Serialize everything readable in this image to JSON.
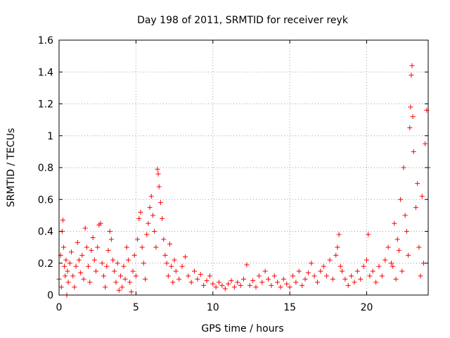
{
  "chart_data": {
    "type": "scatter",
    "title": "Day 198 of 2011, SRMTID for receiver reyk",
    "xlabel": "GPS time / hours",
    "ylabel": "SRMTID / TECUs",
    "xlim": [
      0,
      24
    ],
    "ylim": [
      0,
      1.6
    ],
    "xticks": [
      0,
      5,
      10,
      15,
      20
    ],
    "yticks": [
      0,
      0.2,
      0.4,
      0.6,
      0.8,
      1,
      1.2,
      1.4,
      1.6
    ],
    "ytick_labels": [
      "0",
      "0.2",
      "0.4",
      "0.6",
      "0.8",
      "1",
      "1.2",
      "1.4",
      "1.6"
    ],
    "grid": true,
    "marker": "+",
    "series": [
      {
        "color": "#ff0000",
        "points": [
          [
            0.0,
            0.1
          ],
          [
            0.1,
            0.25
          ],
          [
            0.15,
            0.05
          ],
          [
            0.2,
            0.4
          ],
          [
            0.25,
            0.47
          ],
          [
            0.3,
            0.3
          ],
          [
            0.35,
            0.18
          ],
          [
            0.4,
            0.12
          ],
          [
            0.45,
            0.22
          ],
          [
            0.5,
            0.0
          ],
          [
            0.55,
            0.15
          ],
          [
            0.6,
            0.08
          ],
          [
            0.7,
            0.2
          ],
          [
            0.8,
            0.27
          ],
          [
            0.9,
            0.12
          ],
          [
            1.0,
            0.05
          ],
          [
            1.1,
            0.18
          ],
          [
            1.2,
            0.33
          ],
          [
            1.3,
            0.22
          ],
          [
            1.4,
            0.14
          ],
          [
            1.5,
            0.25
          ],
          [
            1.6,
            0.1
          ],
          [
            1.7,
            0.42
          ],
          [
            1.8,
            0.3
          ],
          [
            1.9,
            0.18
          ],
          [
            2.0,
            0.08
          ],
          [
            2.1,
            0.28
          ],
          [
            2.2,
            0.36
          ],
          [
            2.3,
            0.22
          ],
          [
            2.4,
            0.15
          ],
          [
            2.5,
            0.3
          ],
          [
            2.6,
            0.44
          ],
          [
            2.7,
            0.45
          ],
          [
            2.8,
            0.2
          ],
          [
            2.9,
            0.12
          ],
          [
            3.0,
            0.05
          ],
          [
            3.1,
            0.18
          ],
          [
            3.2,
            0.28
          ],
          [
            3.3,
            0.4
          ],
          [
            3.4,
            0.35
          ],
          [
            3.5,
            0.22
          ],
          [
            3.6,
            0.15
          ],
          [
            3.7,
            0.08
          ],
          [
            3.8,
            0.2
          ],
          [
            3.9,
            0.03
          ],
          [
            4.0,
            0.12
          ],
          [
            4.1,
            0.05
          ],
          [
            4.2,
            0.18
          ],
          [
            4.3,
            0.1
          ],
          [
            4.4,
            0.3
          ],
          [
            4.5,
            0.22
          ],
          [
            4.6,
            0.08
          ],
          [
            4.7,
            0.02
          ],
          [
            4.8,
            0.15
          ],
          [
            4.9,
            0.25
          ],
          [
            5.0,
            0.12
          ],
          [
            5.1,
            0.35
          ],
          [
            5.2,
            0.48
          ],
          [
            5.3,
            0.52
          ],
          [
            5.4,
            0.3
          ],
          [
            5.5,
            0.2
          ],
          [
            5.6,
            0.1
          ],
          [
            5.7,
            0.38
          ],
          [
            5.8,
            0.45
          ],
          [
            5.9,
            0.55
          ],
          [
            6.0,
            0.62
          ],
          [
            6.1,
            0.5
          ],
          [
            6.2,
            0.4
          ],
          [
            6.3,
            0.3
          ],
          [
            6.4,
            0.79
          ],
          [
            6.45,
            0.76
          ],
          [
            6.5,
            0.68
          ],
          [
            6.6,
            0.58
          ],
          [
            6.7,
            0.48
          ],
          [
            6.8,
            0.35
          ],
          [
            6.9,
            0.25
          ],
          [
            7.0,
            0.2
          ],
          [
            7.1,
            0.12
          ],
          [
            7.2,
            0.32
          ],
          [
            7.3,
            0.18
          ],
          [
            7.4,
            0.08
          ],
          [
            7.5,
            0.22
          ],
          [
            7.6,
            0.15
          ],
          [
            7.8,
            0.1
          ],
          [
            8.0,
            0.18
          ],
          [
            8.2,
            0.24
          ],
          [
            8.4,
            0.12
          ],
          [
            8.6,
            0.08
          ],
          [
            8.8,
            0.15
          ],
          [
            9.0,
            0.1
          ],
          [
            9.2,
            0.13
          ],
          [
            9.4,
            0.06
          ],
          [
            9.6,
            0.09
          ],
          [
            9.8,
            0.12
          ],
          [
            10.0,
            0.07
          ],
          [
            10.2,
            0.05
          ],
          [
            10.4,
            0.08
          ],
          [
            10.6,
            0.06
          ],
          [
            10.8,
            0.04
          ],
          [
            11.0,
            0.07
          ],
          [
            11.2,
            0.09
          ],
          [
            11.4,
            0.05
          ],
          [
            11.6,
            0.08
          ],
          [
            11.8,
            0.06
          ],
          [
            12.0,
            0.1
          ],
          [
            12.2,
            0.19
          ],
          [
            12.4,
            0.06
          ],
          [
            12.6,
            0.09
          ],
          [
            12.8,
            0.05
          ],
          [
            13.0,
            0.12
          ],
          [
            13.2,
            0.08
          ],
          [
            13.4,
            0.15
          ],
          [
            13.6,
            0.1
          ],
          [
            13.8,
            0.06
          ],
          [
            14.0,
            0.12
          ],
          [
            14.2,
            0.08
          ],
          [
            14.4,
            0.05
          ],
          [
            14.6,
            0.1
          ],
          [
            14.8,
            0.07
          ],
          [
            15.0,
            0.05
          ],
          [
            15.2,
            0.12
          ],
          [
            15.4,
            0.08
          ],
          [
            15.6,
            0.15
          ],
          [
            15.8,
            0.06
          ],
          [
            16.0,
            0.1
          ],
          [
            16.2,
            0.14
          ],
          [
            16.4,
            0.2
          ],
          [
            16.6,
            0.12
          ],
          [
            16.8,
            0.08
          ],
          [
            17.0,
            0.15
          ],
          [
            17.2,
            0.18
          ],
          [
            17.4,
            0.12
          ],
          [
            17.6,
            0.22
          ],
          [
            17.8,
            0.1
          ],
          [
            18.0,
            0.25
          ],
          [
            18.1,
            0.3
          ],
          [
            18.2,
            0.38
          ],
          [
            18.3,
            0.18
          ],
          [
            18.4,
            0.15
          ],
          [
            18.6,
            0.1
          ],
          [
            18.8,
            0.06
          ],
          [
            19.0,
            0.12
          ],
          [
            19.2,
            0.08
          ],
          [
            19.4,
            0.15
          ],
          [
            19.6,
            0.1
          ],
          [
            19.8,
            0.18
          ],
          [
            20.0,
            0.22
          ],
          [
            20.1,
            0.38
          ],
          [
            20.2,
            0.12
          ],
          [
            20.4,
            0.15
          ],
          [
            20.6,
            0.08
          ],
          [
            20.8,
            0.18
          ],
          [
            21.0,
            0.12
          ],
          [
            21.2,
            0.22
          ],
          [
            21.4,
            0.3
          ],
          [
            21.6,
            0.2
          ],
          [
            21.8,
            0.45
          ],
          [
            22.0,
            0.35
          ],
          [
            22.2,
            0.6
          ],
          [
            22.4,
            0.8
          ],
          [
            22.6,
            0.4
          ],
          [
            22.8,
            1.05
          ],
          [
            22.85,
            1.18
          ],
          [
            22.9,
            1.38
          ],
          [
            22.95,
            1.44
          ],
          [
            23.0,
            1.12
          ],
          [
            23.05,
            0.9
          ],
          [
            23.2,
            0.55
          ],
          [
            23.4,
            0.3
          ],
          [
            23.6,
            0.62
          ],
          [
            23.8,
            0.95
          ],
          [
            23.9,
            1.16
          ],
          [
            24.0,
            0.8
          ],
          [
            23.7,
            0.2
          ],
          [
            23.5,
            0.12
          ],
          [
            23.3,
            0.7
          ],
          [
            22.7,
            0.25
          ],
          [
            22.5,
            0.5
          ],
          [
            22.3,
            0.15
          ],
          [
            22.1,
            0.28
          ],
          [
            21.9,
            0.1
          ],
          [
            21.7,
            0.18
          ]
        ]
      }
    ]
  }
}
